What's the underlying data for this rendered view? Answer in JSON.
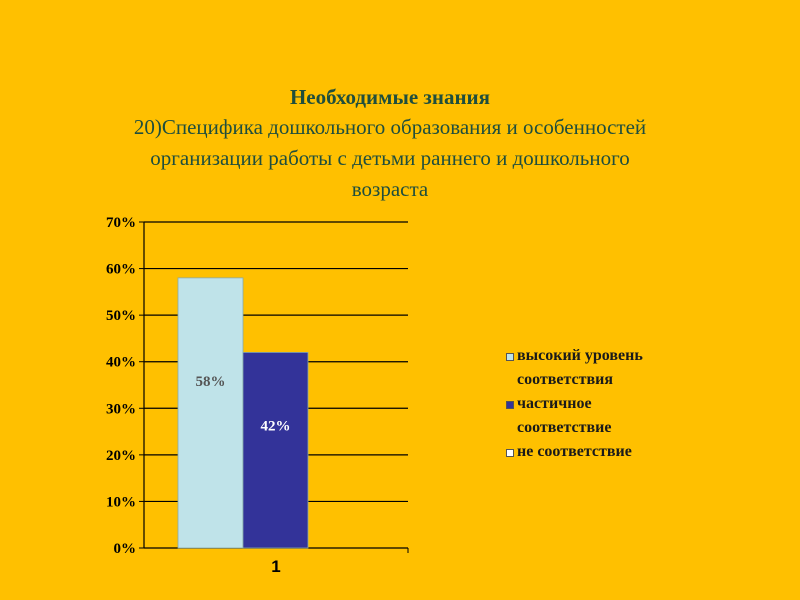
{
  "title": {
    "line1": "Необходимые знания",
    "line2": "20)Специфика дошкольного образования и особенностей",
    "line3": "организации работы с детьми раннего и дошкольного",
    "line4": "возраста"
  },
  "chart_data": {
    "type": "bar",
    "categories": [
      "1"
    ],
    "series": [
      {
        "name": "высокий уровень соответствия",
        "values": [
          58
        ],
        "color": "#BFE3E9",
        "label": "58%",
        "label_color": "#555555"
      },
      {
        "name": "частичное соответствие",
        "values": [
          42
        ],
        "color": "#333399",
        "label": "42%",
        "label_color": "#FFFFFF"
      },
      {
        "name": "не соответствие",
        "values": [
          0
        ],
        "color": "#FFFFFF",
        "label": "",
        "label_color": "#000000"
      }
    ],
    "ylim": [
      0,
      70
    ],
    "yticks": [
      "0%",
      "10%",
      "20%",
      "30%",
      "40%",
      "50%",
      "60%",
      "70%"
    ],
    "grid": true,
    "legend_position": "right"
  },
  "legend": {
    "items": [
      {
        "lines": [
          "высокий уровень",
          "соответствия"
        ],
        "color": "#BFE3E9"
      },
      {
        "lines": [
          "частичное",
          "соответствие"
        ],
        "color": "#333399"
      },
      {
        "lines": [
          "не соответствие"
        ],
        "color": "#FFFFFF"
      }
    ]
  }
}
